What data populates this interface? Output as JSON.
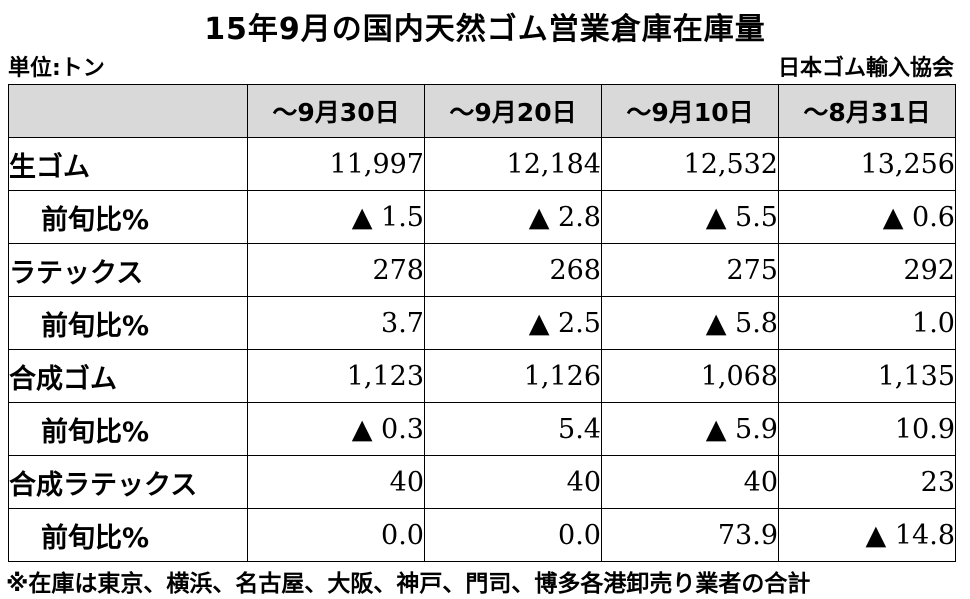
{
  "title": "15年9月の国内天然ゴム営業倉庫在庫量",
  "unit": "単位:トン",
  "source": "日本ゴム輸入協会",
  "headers": [
    "",
    "～9月30日",
    "～9月20日",
    "～9月10日",
    "～8月31日"
  ],
  "rows": [
    {
      "label": "生ゴム",
      "values": [
        "11,997",
        "12,184",
        "12,532",
        "13,256"
      ]
    },
    {
      "label": "前旬比%",
      "values": [
        "▲ 1.5",
        "▲ 2.8",
        "▲ 5.5",
        "▲ 0.6"
      ]
    },
    {
      "label": "ラテックス",
      "values": [
        "278",
        "268",
        "275",
        "292"
      ]
    },
    {
      "label": "前旬比%",
      "values": [
        "3.7",
        "▲ 2.5",
        "▲ 5.8",
        "1.0"
      ]
    },
    {
      "label": "合成ゴム",
      "values": [
        "1,123",
        "1,126",
        "1,068",
        "1,135"
      ]
    },
    {
      "label": "前旬比%",
      "values": [
        "▲ 0.3",
        "5.4",
        "▲ 5.9",
        "10.9"
      ]
    },
    {
      "label": "合成ラテックス",
      "values": [
        "40",
        "40",
        "40",
        "23"
      ]
    },
    {
      "label": "前旬比%",
      "values": [
        "0.0",
        "0.0",
        "73.9",
        "▲ 14.8"
      ]
    }
  ],
  "footnote": "※在庫は東京、横浜、名古屋、大阪、神戸、門司、博多各港卸売り業者の合計"
}
